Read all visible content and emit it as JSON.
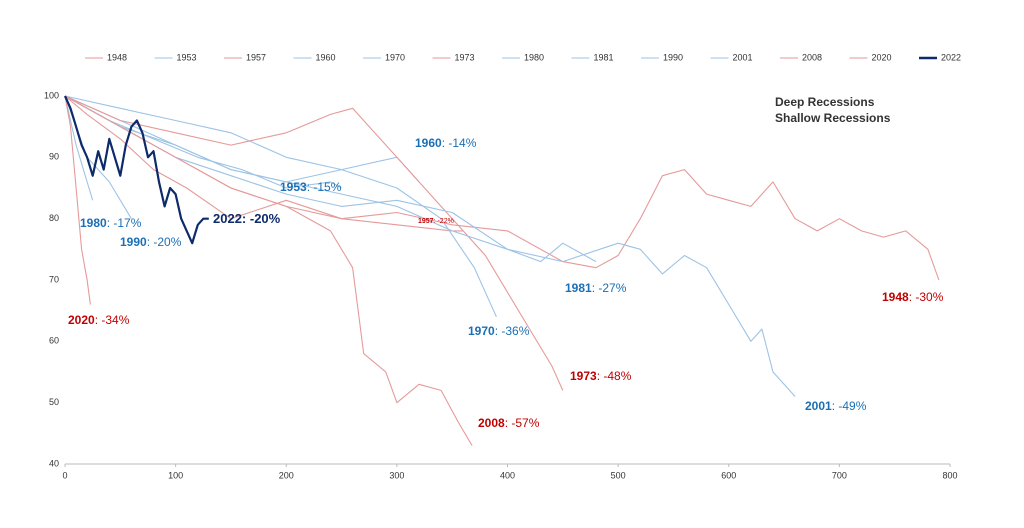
{
  "chart_data": {
    "type": "line",
    "xlim": [
      0,
      800
    ],
    "xticks": [
      0,
      100,
      200,
      300,
      400,
      500,
      600,
      700,
      800
    ],
    "ylim": [
      40,
      100
    ],
    "yticks": [
      40,
      50,
      60,
      70,
      80,
      90,
      100
    ],
    "legend": "top",
    "groups": [
      {
        "name": "Deep Recessions",
        "color": "#c8102e"
      },
      {
        "name": "Shallow Recessions",
        "color": "#1f78c8"
      }
    ],
    "series": [
      {
        "name": "1948",
        "color": "#e59a9a",
        "label_color": "#c00000",
        "end_label": ": -30%",
        "x": [
          0,
          20,
          50,
          80,
          110,
          150,
          200,
          250,
          300,
          350,
          400,
          450,
          480,
          500,
          520,
          540,
          560,
          580,
          600,
          620,
          640,
          660,
          680,
          700,
          720,
          740,
          760,
          780,
          790
        ],
        "values": [
          100,
          97,
          93,
          88,
          85,
          80,
          83,
          80,
          81,
          79,
          78,
          73,
          72,
          74,
          80,
          87,
          88,
          84,
          83,
          82,
          86,
          80,
          78,
          80,
          78,
          77,
          78,
          75,
          70
        ]
      },
      {
        "name": "1953",
        "color": "#9cc3e6",
        "label_color": "#1a6fb5",
        "end_label": ": -15%",
        "x": [
          0,
          40,
          80,
          120,
          160,
          200,
          240,
          250
        ],
        "values": [
          100,
          96,
          93,
          90,
          88,
          85,
          86,
          85
        ]
      },
      {
        "name": "1957",
        "color": "#e59a9a",
        "label_color": "#c00000",
        "end_label": ": -22%",
        "x": [
          0,
          50,
          100,
          150,
          200,
          250,
          300,
          350,
          360
        ],
        "values": [
          100,
          95,
          90,
          85,
          82,
          80,
          79,
          78,
          78
        ]
      },
      {
        "name": "1960",
        "color": "#9cc3e6",
        "label_color": "#1a6fb5",
        "end_label": ": -14%",
        "x": [
          0,
          50,
          100,
          150,
          200,
          250,
          300,
          320
        ],
        "values": [
          100,
          98,
          96,
          94,
          90,
          88,
          90,
          86
        ]
      },
      {
        "name": "1970",
        "color": "#9cc3e6",
        "label_color": "#1a6fb5",
        "end_label": ": -36%",
        "x": [
          0,
          50,
          100,
          150,
          200,
          250,
          300,
          340,
          370,
          390
        ],
        "values": [
          100,
          96,
          92,
          88,
          86,
          88,
          85,
          80,
          72,
          64
        ]
      },
      {
        "name": "1973",
        "color": "#e59a9a",
        "label_color": "#c00000",
        "end_label": ": -48%",
        "x": [
          0,
          50,
          100,
          150,
          200,
          240,
          260,
          300,
          340,
          380,
          400,
          420,
          440,
          450
        ],
        "values": [
          100,
          96,
          94,
          92,
          94,
          97,
          98,
          90,
          82,
          74,
          68,
          62,
          56,
          52
        ]
      },
      {
        "name": "1980",
        "color": "#9cc3e6",
        "label_color": "#1a6fb5",
        "end_label": ": -17%",
        "x": [
          0,
          10,
          20,
          25
        ],
        "values": [
          100,
          92,
          86,
          83
        ]
      },
      {
        "name": "1981",
        "color": "#9cc3e6",
        "label_color": "#1a6fb5",
        "end_label": ": -27%",
        "x": [
          0,
          50,
          100,
          150,
          200,
          250,
          300,
          350,
          400,
          430,
          450,
          480
        ],
        "values": [
          100,
          95,
          90,
          87,
          84,
          82,
          83,
          81,
          75,
          73,
          76,
          73
        ]
      },
      {
        "name": "1990",
        "color": "#9cc3e6",
        "label_color": "#1a6fb5",
        "end_label": ": -20%",
        "x": [
          0,
          20,
          40,
          60
        ],
        "values": [
          100,
          90,
          86,
          80
        ]
      },
      {
        "name": "2001",
        "color": "#9cc3e6",
        "label_color": "#1a6fb5",
        "end_label": ": -49%",
        "x": [
          0,
          50,
          100,
          150,
          200,
          250,
          300,
          350,
          400,
          450,
          500,
          520,
          540,
          560,
          580,
          600,
          620,
          630,
          640,
          650,
          660
        ],
        "values": [
          100,
          95,
          92,
          88,
          86,
          84,
          82,
          78,
          75,
          73,
          76,
          75,
          71,
          74,
          72,
          66,
          60,
          62,
          55,
          53,
          51
        ]
      },
      {
        "name": "2008",
        "color": "#e59a9a",
        "label_color": "#c00000",
        "end_label": ": -57%",
        "x": [
          0,
          50,
          100,
          150,
          200,
          240,
          260,
          270,
          290,
          300,
          320,
          340,
          355,
          368
        ],
        "values": [
          100,
          95,
          90,
          85,
          82,
          78,
          72,
          58,
          55,
          50,
          53,
          52,
          47,
          43
        ]
      },
      {
        "name": "2020",
        "color": "#e59a9a",
        "label_color": "#c00000",
        "end_label": ": -34%",
        "x": [
          0,
          5,
          10,
          15,
          20,
          23
        ],
        "values": [
          100,
          95,
          85,
          75,
          70,
          66
        ]
      },
      {
        "name": "2022",
        "color": "#0d2a6b",
        "label_color": "#0d2a6b",
        "end_label": ": -20%",
        "x": [
          0,
          5,
          10,
          15,
          20,
          25,
          30,
          35,
          40,
          45,
          50,
          55,
          60,
          65,
          70,
          75,
          80,
          85,
          90,
          95,
          100,
          105,
          110,
          115,
          120,
          125,
          130
        ],
        "values": [
          100,
          98,
          95,
          92,
          90,
          87,
          91,
          88,
          93,
          90,
          87,
          92,
          95,
          96,
          94,
          90,
          91,
          86,
          82,
          85,
          84,
          80,
          78,
          76,
          79,
          80,
          80
        ]
      }
    ]
  }
}
